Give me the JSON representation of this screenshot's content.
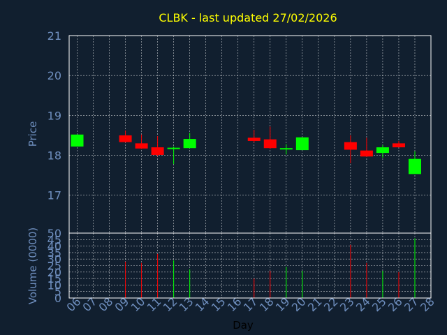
{
  "colors": {
    "background": "#111f2f",
    "title": "#ffff00",
    "axis_text": "#6f8fbf",
    "frame": "#ffffff",
    "grid": "#ffffff",
    "up": "#00ff00",
    "down": "#ff0000"
  },
  "chart_data": [
    {
      "type": "candlestick",
      "title": "CLBK - last updated 27/02/2026",
      "ylabel": "Price",
      "ylim": [
        16.05,
        21
      ],
      "yticks": [
        17,
        18,
        19,
        20,
        21
      ],
      "grid": true,
      "candles": [
        {
          "day": 6,
          "open": 18.22,
          "high": 18.52,
          "low": 18.22,
          "close": 18.52,
          "direction": "up"
        },
        {
          "day": 9,
          "open": 18.5,
          "high": 18.62,
          "low": 18.32,
          "close": 18.33,
          "direction": "down"
        },
        {
          "day": 10,
          "open": 18.3,
          "high": 18.52,
          "low": 18.16,
          "close": 18.17,
          "direction": "down"
        },
        {
          "day": 11,
          "open": 18.2,
          "high": 18.48,
          "low": 17.98,
          "close": 18.01,
          "direction": "down"
        },
        {
          "day": 12,
          "open": 18.16,
          "high": 18.22,
          "low": 17.78,
          "close": 18.19,
          "direction": "up"
        },
        {
          "day": 13,
          "open": 18.18,
          "high": 18.56,
          "low": 18.18,
          "close": 18.41,
          "direction": "up"
        },
        {
          "day": 17,
          "open": 18.44,
          "high": 18.64,
          "low": 18.32,
          "close": 18.36,
          "direction": "down"
        },
        {
          "day": 18,
          "open": 18.4,
          "high": 18.72,
          "low": 18.16,
          "close": 18.18,
          "direction": "down"
        },
        {
          "day": 19,
          "open": 18.15,
          "high": 18.28,
          "low": 18.02,
          "close": 18.18,
          "direction": "up"
        },
        {
          "day": 20,
          "open": 18.13,
          "high": 18.45,
          "low": 18.13,
          "close": 18.45,
          "direction": "up"
        },
        {
          "day": 23,
          "open": 18.33,
          "high": 18.5,
          "low": 17.8,
          "close": 18.14,
          "direction": "down"
        },
        {
          "day": 24,
          "open": 18.12,
          "high": 18.44,
          "low": 17.96,
          "close": 17.97,
          "direction": "down"
        },
        {
          "day": 25,
          "open": 18.06,
          "high": 18.26,
          "low": 17.94,
          "close": 18.2,
          "direction": "up"
        },
        {
          "day": 26,
          "open": 18.3,
          "high": 18.36,
          "low": 18.2,
          "close": 18.2,
          "direction": "down"
        },
        {
          "day": 27,
          "open": 17.53,
          "high": 18.1,
          "low": 17.53,
          "close": 17.91,
          "direction": "up"
        }
      ]
    },
    {
      "type": "bar",
      "xlabel": "Day",
      "ylabel": "Volume (0000)",
      "ylim": [
        0,
        50
      ],
      "yticks": [
        0,
        5,
        10,
        15,
        20,
        25,
        30,
        35,
        40,
        45,
        50
      ],
      "grid": true,
      "x_tick_labels": [
        "06",
        "07",
        "08",
        "09",
        "10",
        "11",
        "12",
        "13",
        "14",
        "15",
        "16",
        "17",
        "18",
        "19",
        "20",
        "21",
        "22",
        "23",
        "24",
        "25",
        "26",
        "27",
        "28"
      ],
      "bars": [
        {
          "day": 9,
          "value": 28,
          "direction": "down"
        },
        {
          "day": 10,
          "value": 27,
          "direction": "down"
        },
        {
          "day": 11,
          "value": 34,
          "direction": "down"
        },
        {
          "day": 12,
          "value": 29,
          "direction": "up"
        },
        {
          "day": 13,
          "value": 22,
          "direction": "up"
        },
        {
          "day": 17,
          "value": 15,
          "direction": "down"
        },
        {
          "day": 18,
          "value": 21,
          "direction": "down"
        },
        {
          "day": 19,
          "value": 24,
          "direction": "up"
        },
        {
          "day": 20,
          "value": 21,
          "direction": "up"
        },
        {
          "day": 23,
          "value": 41,
          "direction": "down"
        },
        {
          "day": 24,
          "value": 27,
          "direction": "down"
        },
        {
          "day": 25,
          "value": 21,
          "direction": "up"
        },
        {
          "day": 26,
          "value": 20,
          "direction": "down"
        },
        {
          "day": 27,
          "value": 46,
          "direction": "up"
        }
      ]
    }
  ]
}
